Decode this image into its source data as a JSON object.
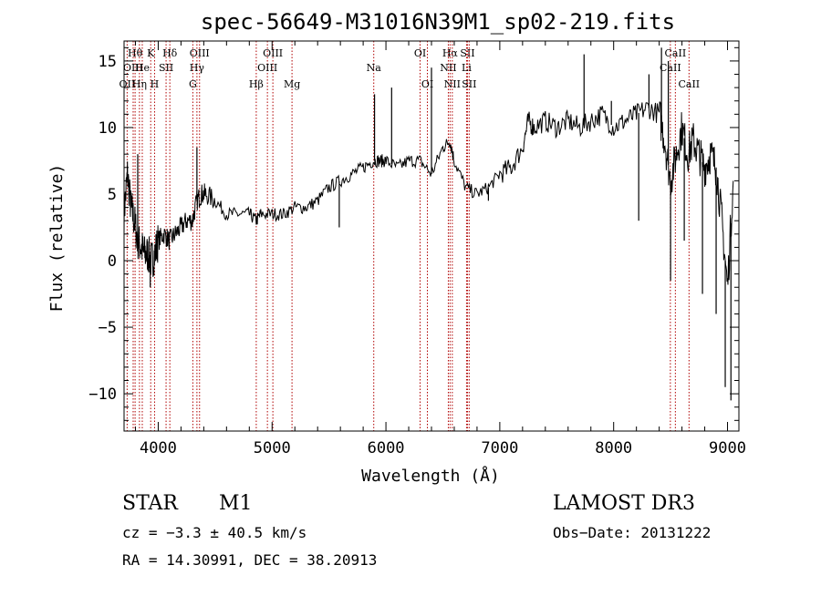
{
  "chart_data": {
    "type": "line",
    "title": "spec-56649-M31016N39M1_sp02-219.fits",
    "xlabel": "Wavelength (Å)",
    "ylabel": "Flux (relative)",
    "xlim": [
      3700,
      9100
    ],
    "ylim": [
      -12.8,
      16.5
    ],
    "xticks": [
      {
        "value": 4000,
        "label": "4000"
      },
      {
        "value": 5000,
        "label": "5000"
      },
      {
        "value": 6000,
        "label": "6000"
      },
      {
        "value": 7000,
        "label": "7000"
      },
      {
        "value": 8000,
        "label": "8000"
      },
      {
        "value": 9000,
        "label": "9000"
      }
    ],
    "yticks": [
      {
        "value": 15,
        "label": "15"
      },
      {
        "value": 10,
        "label": "10"
      },
      {
        "value": 5,
        "label": "5"
      },
      {
        "value": 0,
        "label": "0"
      },
      {
        "value": -5,
        "label": "−5"
      },
      {
        "value": -10,
        "label": "−10"
      }
    ],
    "series": [
      {
        "name": "flux",
        "x": [
          3700,
          3730,
          3760,
          3790,
          3820,
          3850,
          3880,
          3910,
          3940,
          3970,
          4000,
          4050,
          4100,
          4150,
          4200,
          4250,
          4300,
          4340,
          4380,
          4420,
          4500,
          4600,
          4700,
          4800,
          4861,
          4900,
          5000,
          5100,
          5200,
          5300,
          5400,
          5500,
          5600,
          5700,
          5800,
          5890,
          5950,
          6000,
          6100,
          6200,
          6300,
          6400,
          6500,
          6563,
          6600,
          6700,
          6800,
          6900,
          7000,
          7100,
          7200,
          7250,
          7300,
          7400,
          7500,
          7600,
          7700,
          7800,
          7900,
          8000,
          8100,
          8200,
          8300,
          8400,
          8450,
          8500,
          8550,
          8600,
          8650,
          8700,
          8750,
          8800,
          8850,
          8900,
          8950,
          9000,
          9050
        ],
        "y": [
          3.5,
          6.5,
          4.0,
          3.0,
          1.5,
          1.0,
          0.5,
          0.5,
          0.0,
          0.5,
          1.5,
          2.0,
          1.5,
          2.0,
          2.5,
          3.0,
          3.0,
          4.5,
          5.0,
          5.0,
          4.5,
          3.5,
          3.5,
          3.5,
          3.0,
          3.5,
          3.5,
          3.5,
          4.0,
          4.0,
          4.5,
          5.5,
          6.0,
          6.5,
          7.0,
          7.5,
          7.5,
          7.5,
          7.0,
          7.5,
          7.5,
          6.5,
          8.5,
          9.0,
          7.5,
          5.5,
          5.0,
          5.5,
          6.5,
          7.0,
          8.5,
          10.5,
          10.0,
          10.5,
          10.0,
          10.5,
          10.0,
          10.5,
          11.0,
          10.0,
          10.5,
          11.0,
          11.5,
          11.0,
          9.0,
          6.0,
          8.0,
          10.0,
          8.0,
          9.0,
          8.0,
          7.0,
          8.0,
          7.0,
          3.0,
          -2.0,
          6.0
        ]
      }
    ],
    "spikes": [
      {
        "x": 3820,
        "y": 8.0
      },
      {
        "x": 3930,
        "y": -2.0
      },
      {
        "x": 4340,
        "y": 8.5
      },
      {
        "x": 5590,
        "y": 2.5
      },
      {
        "x": 5900,
        "y": 12.5
      },
      {
        "x": 6050,
        "y": 13.0
      },
      {
        "x": 6400,
        "y": 14.5
      },
      {
        "x": 6900,
        "y": 4.5
      },
      {
        "x": 7740,
        "y": 15.5
      },
      {
        "x": 7980,
        "y": 12.0
      },
      {
        "x": 8220,
        "y": 3.0
      },
      {
        "x": 8310,
        "y": 14.0
      },
      {
        "x": 8420,
        "y": 16.0
      },
      {
        "x": 8480,
        "y": 15.0
      },
      {
        "x": 8500,
        "y": -1.5
      },
      {
        "x": 8620,
        "y": 1.5
      },
      {
        "x": 8780,
        "y": -2.5
      },
      {
        "x": 8900,
        "y": -4.0
      },
      {
        "x": 8980,
        "y": -9.5
      },
      {
        "x": 9030,
        "y": -10.5
      }
    ],
    "line_markers": [
      {
        "label": "Hθ",
        "x": 3797,
        "row": 0
      },
      {
        "label": "OII",
        "x": 3727,
        "row": 2
      },
      {
        "label": "OIII",
        "x": 3780,
        "row": 1
      },
      {
        "label": "He",
        "x": 3860,
        "row": 1
      },
      {
        "label": "Hη",
        "x": 3835,
        "row": 2
      },
      {
        "label": "K",
        "x": 3934,
        "row": 0
      },
      {
        "label": "SII",
        "x": 4069,
        "row": 1
      },
      {
        "label": "H",
        "x": 3968,
        "row": 2
      },
      {
        "label": "Hδ",
        "x": 4102,
        "row": 0
      },
      {
        "label": "OIII",
        "x": 4363,
        "row": 0
      },
      {
        "label": "Hγ",
        "x": 4340,
        "row": 1
      },
      {
        "label": "G",
        "x": 4304,
        "row": 2
      },
      {
        "label": "Hβ",
        "x": 4861,
        "row": 2
      },
      {
        "label": "OIII",
        "x": 5007,
        "row": 0
      },
      {
        "label": "OIII",
        "x": 4959,
        "row": 1
      },
      {
        "label": "Mg",
        "x": 5175,
        "row": 2
      },
      {
        "label": "Na",
        "x": 5893,
        "row": 1
      },
      {
        "label": "OI",
        "x": 6300,
        "row": 0
      },
      {
        "label": "OI",
        "x": 6364,
        "row": 2
      },
      {
        "label": "Hα",
        "x": 6563,
        "row": 0
      },
      {
        "label": "NII",
        "x": 6548,
        "row": 1
      },
      {
        "label": "NII",
        "x": 6583,
        "row": 2
      },
      {
        "label": "SII",
        "x": 6716,
        "row": 0
      },
      {
        "label": "Li",
        "x": 6708,
        "row": 1
      },
      {
        "label": "SII",
        "x": 6731,
        "row": 2
      },
      {
        "label": "CaII",
        "x": 8542,
        "row": 0
      },
      {
        "label": "CaII",
        "x": 8498,
        "row": 1
      },
      {
        "label": "CaII",
        "x": 8662,
        "row": 2
      }
    ]
  },
  "footer": {
    "object_class": "STAR",
    "subclass": "M1",
    "survey": "LAMOST DR3",
    "cz": "cz = −3.3 ± 40.5 km/s",
    "obs_date": "Obs−Date: 20131222",
    "coords": "RA =  14.30991, DEC =  38.20913"
  }
}
